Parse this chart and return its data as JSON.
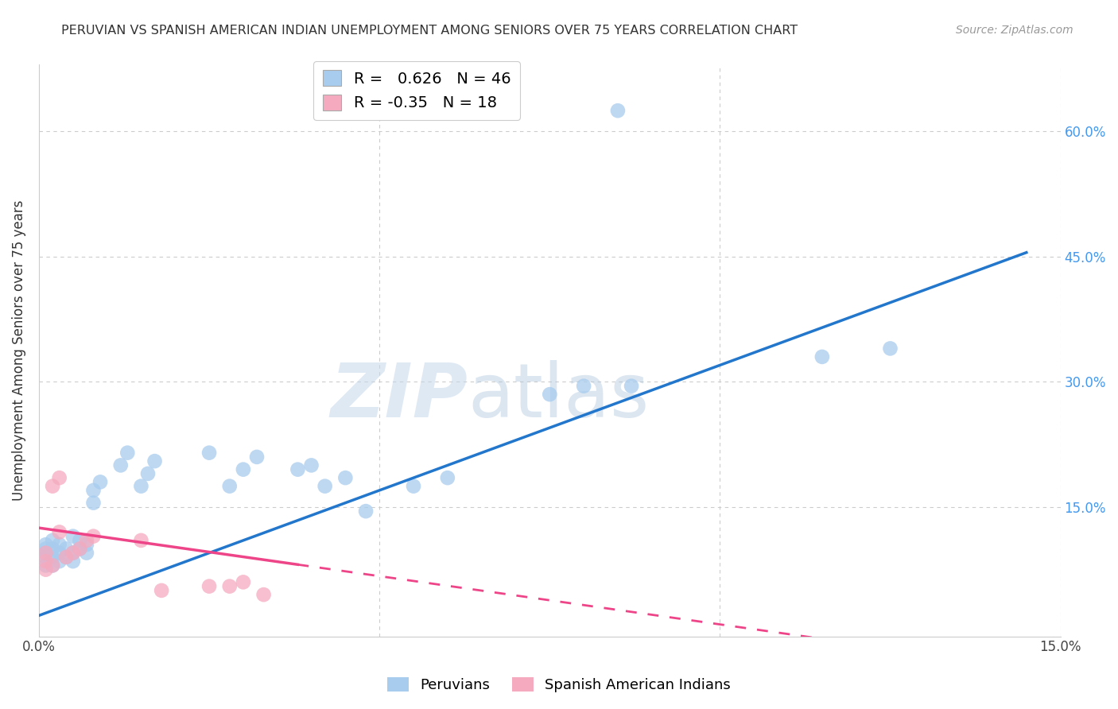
{
  "title": "PERUVIAN VS SPANISH AMERICAN INDIAN UNEMPLOYMENT AMONG SENIORS OVER 75 YEARS CORRELATION CHART",
  "source": "Source: ZipAtlas.com",
  "ylabel": "Unemployment Among Seniors over 75 years",
  "xlim": [
    0.0,
    0.15
  ],
  "ylim": [
    -0.005,
    0.68
  ],
  "peruvian_R": 0.626,
  "peruvian_N": 46,
  "spanish_R": -0.35,
  "spanish_N": 18,
  "peruvian_color": "#A8CCEE",
  "spanish_color": "#F5AABF",
  "peruvian_line_color": "#2277CC",
  "spanish_line_color": "#EE4488",
  "watermark_zip": "ZIP",
  "watermark_atlas": "atlas",
  "bg_color": "#FFFFFF",
  "grid_color": "#CCCCCC",
  "peruvian_x": [
    0.001,
    0.001,
    0.001,
    0.001,
    0.001,
    0.002,
    0.002,
    0.002,
    0.002,
    0.003,
    0.003,
    0.003,
    0.004,
    0.004,
    0.005,
    0.005,
    0.005,
    0.006,
    0.006,
    0.007,
    0.007,
    0.008,
    0.008,
    0.009,
    0.012,
    0.013,
    0.015,
    0.016,
    0.017,
    0.025,
    0.028,
    0.03,
    0.032,
    0.038,
    0.04,
    0.042,
    0.045,
    0.048,
    0.055,
    0.06,
    0.075,
    0.08,
    0.085,
    0.087,
    0.115,
    0.125
  ],
  "peruvian_y": [
    0.08,
    0.09,
    0.095,
    0.1,
    0.105,
    0.08,
    0.09,
    0.1,
    0.11,
    0.085,
    0.095,
    0.105,
    0.09,
    0.1,
    0.085,
    0.095,
    0.115,
    0.1,
    0.11,
    0.095,
    0.105,
    0.155,
    0.17,
    0.18,
    0.2,
    0.215,
    0.175,
    0.19,
    0.205,
    0.215,
    0.175,
    0.195,
    0.21,
    0.195,
    0.2,
    0.175,
    0.185,
    0.145,
    0.175,
    0.185,
    0.285,
    0.295,
    0.625,
    0.295,
    0.33,
    0.34
  ],
  "spanish_x": [
    0.001,
    0.001,
    0.001,
    0.002,
    0.002,
    0.003,
    0.003,
    0.004,
    0.005,
    0.006,
    0.007,
    0.008,
    0.015,
    0.018,
    0.025,
    0.028,
    0.03,
    0.033
  ],
  "spanish_y": [
    0.075,
    0.085,
    0.095,
    0.08,
    0.175,
    0.12,
    0.185,
    0.09,
    0.095,
    0.1,
    0.11,
    0.115,
    0.11,
    0.05,
    0.055,
    0.055,
    0.06,
    0.045
  ],
  "blue_line_x0": 0.0,
  "blue_line_x1": 0.145,
  "blue_line_y0": 0.02,
  "blue_line_y1": 0.455,
  "pink_line_x0": 0.0,
  "pink_line_x1": 0.115,
  "pink_line_y0": 0.125,
  "pink_line_y1": -0.008
}
